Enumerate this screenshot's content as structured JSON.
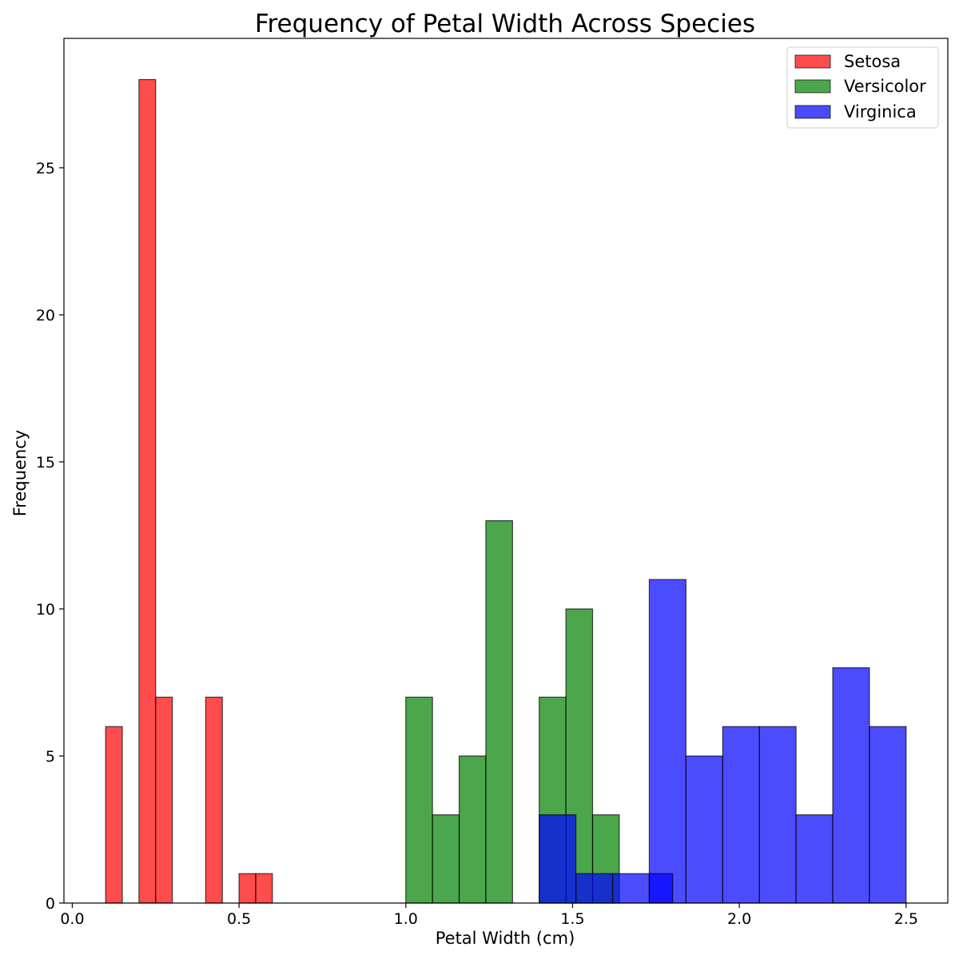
{
  "chart_data": {
    "type": "histogram",
    "title": "Frequency of Petal Width Across Species",
    "xlabel": "Petal Width (cm)",
    "ylabel": "Frequency",
    "xlim": [
      -0.025,
      2.625
    ],
    "ylim": [
      0,
      29.4
    ],
    "xticks": [
      "0.0",
      "0.5",
      "1.0",
      "1.5",
      "2.0",
      "2.5"
    ],
    "xtick_values": [
      0,
      0.5,
      1.0,
      1.5,
      2.0,
      2.5
    ],
    "yticks": [
      "0",
      "5",
      "10",
      "15",
      "20",
      "25"
    ],
    "ytick_values": [
      0,
      5,
      10,
      15,
      20,
      25
    ],
    "grid": false,
    "legend_position": "top-right",
    "series": [
      {
        "name": "Setosa",
        "color": "#ff0000",
        "bin_edges": [
          0.1,
          0.15,
          0.2,
          0.25,
          0.3,
          0.35,
          0.4,
          0.45,
          0.5,
          0.55,
          0.6
        ],
        "counts": [
          6,
          0,
          28,
          7,
          0,
          0,
          7,
          0,
          1,
          1
        ]
      },
      {
        "name": "Versicolor",
        "color": "#008000",
        "bin_edges": [
          1.0,
          1.08,
          1.16,
          1.24,
          1.32,
          1.4,
          1.48,
          1.56,
          1.64,
          1.72,
          1.8
        ],
        "counts": [
          7,
          3,
          5,
          13,
          0,
          7,
          10,
          3,
          0,
          0
        ]
      },
      {
        "name": "Virginica",
        "color": "#0000ff",
        "bin_edges": [
          1.4,
          1.51,
          1.62,
          1.73,
          1.84,
          1.95,
          2.06,
          2.17,
          2.28,
          2.39,
          2.5
        ],
        "counts": [
          3,
          1,
          1,
          11,
          5,
          6,
          6,
          3,
          8,
          6
        ]
      },
      {
        "name": "",
        "color": "#0000ff",
        "bin_edges": [
          1.4,
          1.51,
          1.62,
          1.73,
          1.8
        ],
        "counts": [
          0,
          0,
          0,
          1
        ]
      }
    ]
  }
}
